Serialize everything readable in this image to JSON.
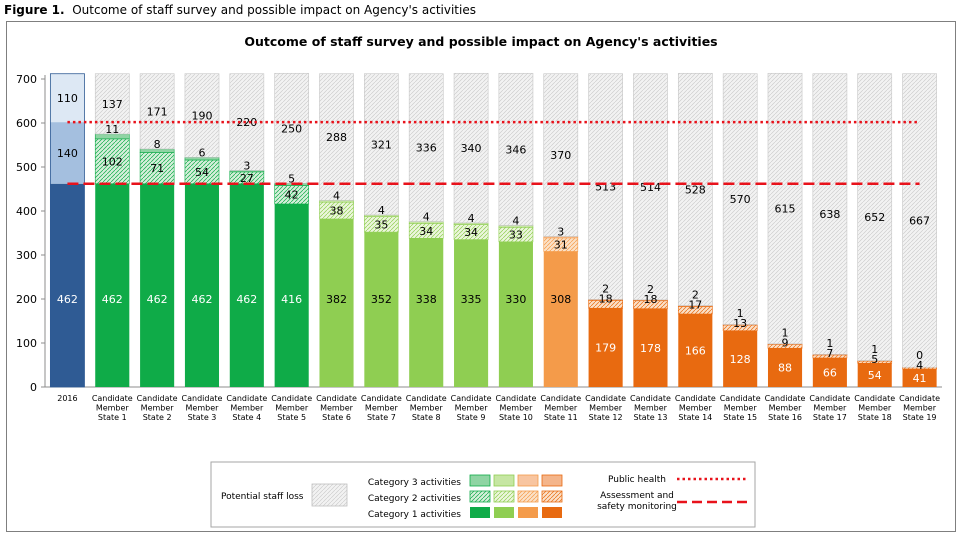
{
  "figure_caption": {
    "label": "Figure 1.",
    "text": "Outcome of staff survey and possible impact on Agency's activities"
  },
  "chart_data": {
    "type": "bar",
    "stacked": true,
    "title": "Outcome of staff survey and possible impact on Agency's activities",
    "xlabel": "",
    "ylabel": "",
    "ylim": [
      0,
      700
    ],
    "yticks": [
      0,
      100,
      200,
      300,
      400,
      500,
      600,
      700
    ],
    "grid": false,
    "legend_position": "bottom-center",
    "categories": [
      "2016",
      "Candidate Member State 1",
      "Candidate Member State 2",
      "Candidate Member State 3",
      "Candidate Member State 4",
      "Candidate Member State 5",
      "Candidate Member State 6",
      "Candidate Member State 7",
      "Candidate Member State 8",
      "Candidate Member State 9",
      "Candidate Member State 10",
      "Candidate Member State 11",
      "Candidate Member State 12",
      "Candidate Member State 13",
      "Candidate Member State 14",
      "Candidate Member State 15",
      "Candidate Member State 16",
      "Candidate Member State 17",
      "Candidate Member State 18",
      "Candidate Member State 19"
    ],
    "category_lines": [
      [
        "2016"
      ],
      [
        "Candidate",
        "Member",
        "State 1"
      ],
      [
        "Candidate",
        "Member",
        "State 2"
      ],
      [
        "Candidate",
        "Member",
        "State 3"
      ],
      [
        "Candidate",
        "Member",
        "State 4"
      ],
      [
        "Candidate",
        "Member",
        "State 5"
      ],
      [
        "Candidate",
        "Member",
        "State 6"
      ],
      [
        "Candidate",
        "Member",
        "State 7"
      ],
      [
        "Candidate",
        "Member",
        "State 8"
      ],
      [
        "Candidate",
        "Member",
        "State 9"
      ],
      [
        "Candidate",
        "Member",
        "State 10"
      ],
      [
        "Candidate",
        "Member",
        "State 11"
      ],
      [
        "Candidate",
        "Member",
        "State 12"
      ],
      [
        "Candidate",
        "Member",
        "State 13"
      ],
      [
        "Candidate",
        "Member",
        "State 14"
      ],
      [
        "Candidate",
        "Member",
        "State 15"
      ],
      [
        "Candidate",
        "Member",
        "State 16"
      ],
      [
        "Candidate",
        "Member",
        "State 17"
      ],
      [
        "Candidate",
        "Member",
        "State 18"
      ],
      [
        "Candidate",
        "Member",
        "State 19"
      ]
    ],
    "group": [
      "base",
      "dg",
      "dg",
      "dg",
      "dg",
      "dg",
      "lg",
      "lg",
      "lg",
      "lg",
      "lg",
      "lo",
      "do",
      "do",
      "do",
      "do",
      "do",
      "do",
      "do",
      "do"
    ],
    "series": [
      {
        "name": "Category 1 activities",
        "values": [
          462,
          462,
          462,
          462,
          462,
          416,
          382,
          352,
          338,
          335,
          330,
          308,
          179,
          178,
          166,
          128,
          88,
          66,
          54,
          41
        ]
      },
      {
        "name": "Category 2 activities",
        "values": [
          140,
          102,
          71,
          54,
          27,
          42,
          38,
          35,
          34,
          34,
          33,
          31,
          18,
          18,
          17,
          13,
          9,
          7,
          5,
          4
        ]
      },
      {
        "name": "Category 3 activities",
        "values": [
          110,
          11,
          8,
          6,
          3,
          5,
          4,
          4,
          4,
          4,
          4,
          3,
          2,
          2,
          2,
          1,
          1,
          1,
          1,
          0
        ]
      },
      {
        "name": "Potential staff loss",
        "values": [
          0,
          137,
          171,
          190,
          220,
          250,
          288,
          321,
          336,
          340,
          346,
          370,
          513,
          514,
          528,
          570,
          615,
          638,
          652,
          667
        ]
      }
    ],
    "reference_lines": [
      {
        "name": "Public health",
        "value": 602,
        "style": "dotted",
        "color": "#e8121b"
      },
      {
        "name": "Assessment and safety monitoring",
        "value": 462,
        "style": "dashed",
        "color": "#e8121b"
      }
    ],
    "colors": {
      "base": [
        "#2f5b94",
        "#a4bfdf",
        "#dde8f4"
      ],
      "dg": [
        "#0fab48",
        "#d6efdb",
        "#8fd4a3"
      ],
      "lg": [
        "#8fce52",
        "#ecf6dc",
        "#c6e6a3"
      ],
      "lo": [
        "#f49b4a",
        "#fbe1c7",
        "#f8c5a0"
      ],
      "do": [
        "#e86a10",
        "#fbe0c8",
        "#f4b58b"
      ],
      "staff_loss": "#f0f0f0",
      "label_dark_text": "#ffffff",
      "label_light_text": "#000000"
    },
    "legend": {
      "potential_staff_loss": "Potential staff loss",
      "category3": "Category 3 activities",
      "category2": "Category 2 activities",
      "category1": "Category 1 activities",
      "public_health": "Public health",
      "assessment_lines": [
        "Assessment and",
        "safety monitoring"
      ]
    }
  }
}
